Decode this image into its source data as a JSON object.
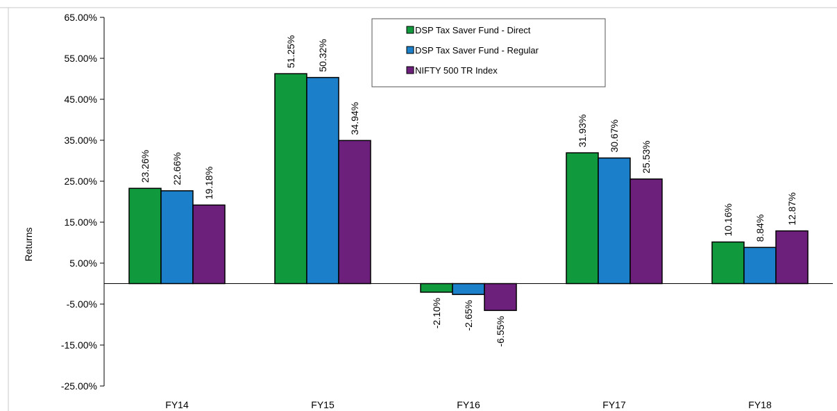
{
  "chart_data": {
    "type": "bar",
    "title": "",
    "xlabel": "",
    "ylabel": "Returns",
    "ylim": [
      -25,
      65
    ],
    "yticks": [
      -25,
      -15,
      -5,
      5,
      15,
      25,
      35,
      45,
      55,
      65
    ],
    "ytick_labels": [
      "-25.00%",
      "-15.00%",
      "-5.00%",
      "5.00%",
      "15.00%",
      "25.00%",
      "35.00%",
      "45.00%",
      "55.00%",
      "65.00%"
    ],
    "categories": [
      "FY14",
      "FY15",
      "FY16",
      "FY17",
      "FY18"
    ],
    "grid": false,
    "legend_position": "top-center",
    "series": [
      {
        "name": "DSP Tax Saver Fund - Direct",
        "color": "#109a3d",
        "values": [
          23.26,
          51.25,
          -2.1,
          31.93,
          10.16
        ],
        "labels": [
          "23.26%",
          "51.25%",
          "-2.10%",
          "31.93%",
          "10.16%"
        ]
      },
      {
        "name": "DSP Tax Saver Fund - Regular",
        "color": "#1b7fc9",
        "values": [
          22.66,
          50.32,
          -2.65,
          30.67,
          8.84
        ],
        "labels": [
          "22.66%",
          "50.32%",
          "-2.65%",
          "30.67%",
          "8.84%"
        ]
      },
      {
        "name": "NIFTY 500 TR Index",
        "color": "#6c207c",
        "values": [
          19.18,
          34.94,
          -6.55,
          25.53,
          12.87
        ],
        "labels": [
          "19.18%",
          "34.94%",
          "-6.55%",
          "25.53%",
          "12.87%"
        ]
      }
    ]
  }
}
